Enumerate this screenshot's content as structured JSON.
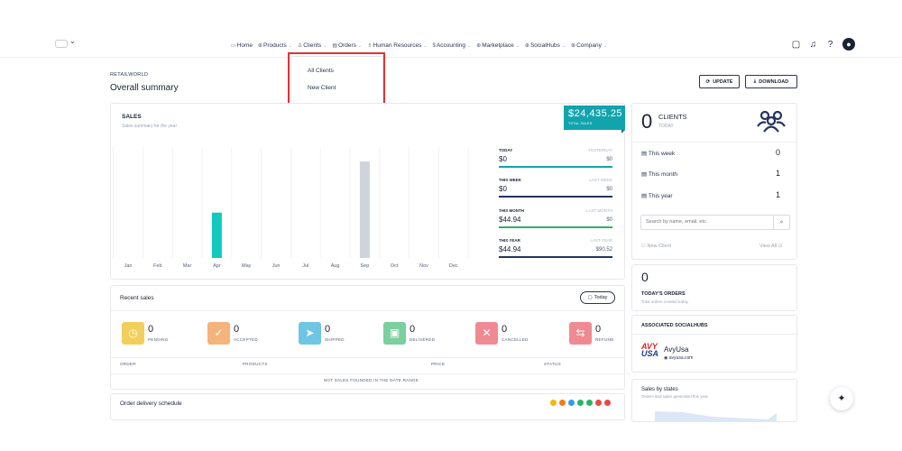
{
  "nav": {
    "items": [
      {
        "icon": "▭",
        "label": "Home",
        "chevron": false
      },
      {
        "icon": "⊕",
        "label": "Products",
        "chevron": true
      },
      {
        "icon": "♙",
        "label": "Clients",
        "chevron": true
      },
      {
        "icon": "▤",
        "label": "Orders",
        "chevron": true
      },
      {
        "icon": "♗",
        "label": "Human Resources",
        "chevron": true
      },
      {
        "icon": "$",
        "label": "Accounting",
        "chevron": true
      },
      {
        "icon": "⊕",
        "label": "Marketplace",
        "chevron": true
      },
      {
        "icon": "⊕",
        "label": "SocialHubs",
        "chevron": true
      },
      {
        "icon": "⊕",
        "label": "Company",
        "chevron": true
      }
    ]
  },
  "dropdown": {
    "items": [
      "All Clients",
      "New Client"
    ]
  },
  "breadcrumb": "RETAILWORLD",
  "page_title": "Overall summary",
  "buttons": {
    "update": "UPDATE",
    "download": "DOWNLOAD"
  },
  "sales": {
    "title": "SALES",
    "subtitle": "Sales summary for the year",
    "total": "$24,435.25",
    "total_label": "TOTAL SALES",
    "stats": [
      {
        "label": "TODAY",
        "compare_label": "YESTERDAY",
        "value": "$0",
        "compare_value": "$0",
        "color": "#12a4ad"
      },
      {
        "label": "THIS WEEK",
        "compare_label": "LAST WEEK",
        "value": "$0",
        "compare_value": "$0",
        "color": "#24345c"
      },
      {
        "label": "THIS MONTH",
        "compare_label": "LAST MONTH",
        "value": "$44.94",
        "compare_value": "$0",
        "color": "#28b463"
      },
      {
        "label": "THIS YEAR",
        "compare_label": "LAST YEAR",
        "value": "$44.94",
        "compare_value": "$90.52",
        "color": "#24345c"
      }
    ]
  },
  "chart_data": {
    "type": "bar",
    "categories": [
      "Jan",
      "Feb",
      "Mar",
      "Apr",
      "May",
      "Jun",
      "Jul",
      "Aug",
      "Sep",
      "Oct",
      "Nov",
      "Dec"
    ],
    "series": [
      {
        "values": [
          0,
          0,
          0,
          0.47,
          0,
          0,
          0,
          0,
          0,
          0,
          0,
          0
        ],
        "color": "#12c9bf"
      },
      {
        "values": [
          0,
          0,
          0,
          0,
          0,
          0,
          0,
          0,
          1,
          0,
          0,
          0
        ],
        "color": "#cfd4dc"
      }
    ],
    "ylim": [
      0,
      1.15
    ],
    "grid": true,
    "title": "",
    "xlabel": "",
    "ylabel": ""
  },
  "clients": {
    "count": "0",
    "label": "CLIENTS",
    "sub": "TODAY",
    "rows": [
      {
        "label": "This week",
        "value": "0"
      },
      {
        "label": "This month",
        "value": "1"
      },
      {
        "label": "This year",
        "value": "1"
      }
    ],
    "search_placeholder": "Search by name, email, etc.",
    "new_client": "New Client",
    "view_all": "View All"
  },
  "orders": {
    "count": "0",
    "label": "TODAY'S ORDERS",
    "sub": "Total orders created today"
  },
  "social": {
    "title": "ASSOCIATED SOCIALHUBS",
    "logo_text": "AVY USA",
    "name": "AvyUsa",
    "url": "avyusa.com"
  },
  "states": {
    "title": "Sales by states",
    "sub": "Orders and sales generated this year"
  },
  "recent": {
    "title": "Recent sales",
    "today_btn": "Today",
    "statuses": [
      {
        "name": "PENDING",
        "count": "0",
        "color": "#f2cf5b",
        "icon": "◷"
      },
      {
        "name": "ACCEPTED",
        "count": "0",
        "color": "#f5b47c",
        "icon": "✓"
      },
      {
        "name": "SHIPPED",
        "count": "0",
        "color": "#6fc6e3",
        "icon": "➤"
      },
      {
        "name": "DELIVERED",
        "count": "0",
        "color": "#7ccf9f",
        "icon": "▣"
      },
      {
        "name": "CANCELLED",
        "count": "0",
        "color": "#f08a92",
        "icon": "✕"
      },
      {
        "name": "REFUND",
        "count": "0",
        "color": "#f08a92",
        "icon": "⇆"
      }
    ],
    "columns": [
      "ORDER",
      "PRODUCTS",
      "PRICE",
      "STATUS"
    ],
    "empty": "NOT SALES FOUNDED IN THE DATE RANGE"
  },
  "delivery": {
    "title": "Order delivery schedule",
    "dots": [
      "#f5b800",
      "#f07d1a",
      "#2f9ee8",
      "#28b463",
      "#28b463",
      "#e84848",
      "#e84848"
    ]
  }
}
